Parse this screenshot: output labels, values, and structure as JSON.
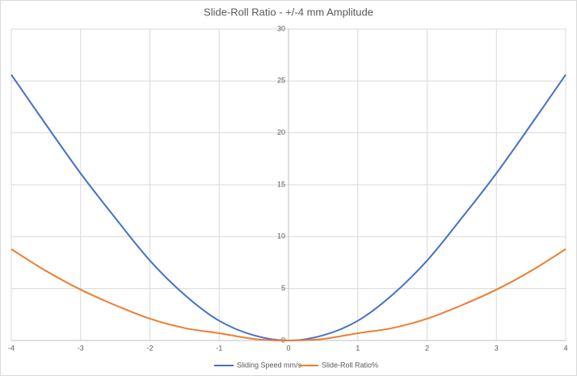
{
  "chart_data": {
    "type": "line",
    "title": "Slide-Roll Ratio - +/-4 mm Amplitude",
    "x": [
      -4,
      -3.5,
      -3,
      -2.5,
      -2,
      -1.5,
      -1,
      -0.5,
      0,
      0.5,
      1,
      1.5,
      2,
      2.5,
      3,
      3.5,
      4
    ],
    "series": [
      {
        "name": "Sliding Speed mm/s",
        "color": "#4472c4",
        "values": [
          25.6,
          20.8,
          16.1,
          11.8,
          7.7,
          4.4,
          1.9,
          0.5,
          0,
          0.5,
          1.9,
          4.4,
          7.7,
          11.8,
          16.1,
          20.8,
          25.6
        ]
      },
      {
        "name": "Slide-Roll Ratio%",
        "color": "#ed7d31",
        "values": [
          8.8,
          6.7,
          4.9,
          3.4,
          2.1,
          1.2,
          0.7,
          0.15,
          0,
          0.15,
          0.7,
          1.2,
          2.1,
          3.4,
          4.9,
          6.7,
          8.8
        ]
      }
    ],
    "xlim": [
      -4,
      4
    ],
    "xticks": [
      -4,
      -3,
      -2,
      -1,
      0,
      1,
      2,
      3,
      4
    ],
    "ylim": [
      0,
      30
    ],
    "yticks": [
      0,
      5,
      10,
      15,
      20,
      25,
      30
    ],
    "grid": true,
    "legend": "bottom"
  }
}
